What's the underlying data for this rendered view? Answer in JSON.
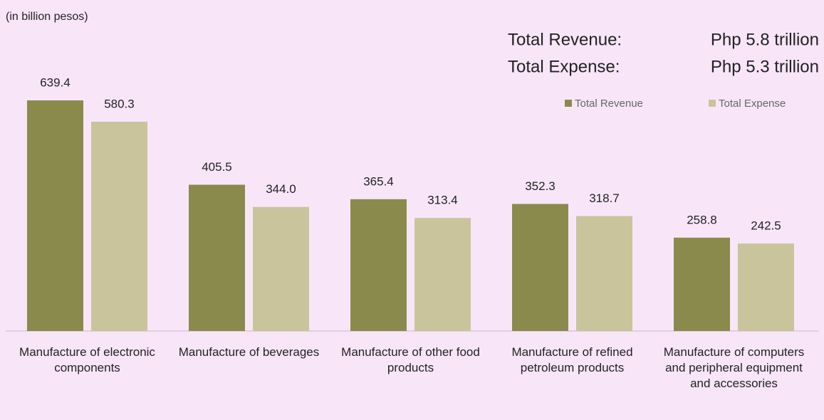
{
  "chart_data": {
    "type": "bar",
    "subtitle": "(in billion pesos)",
    "annotations": [
      {
        "label": "Total Revenue:",
        "text": "Php 5.8 trillion"
      },
      {
        "label": "Total Expense:",
        "text": "Php 5.3 trillion"
      }
    ],
    "categories": [
      "Manufacture of electronic components",
      "Manufacture of beverages",
      "Manufacture of other food products",
      "Manufacture of refined petroleum products",
      "Manufacture of computers and peripheral equipment and accessories"
    ],
    "series": [
      {
        "name": "Total Revenue",
        "color": "#8b8a4d",
        "values": [
          639.4,
          405.5,
          365.4,
          352.3,
          258.8
        ],
        "value_labels": [
          "639.4",
          "405.5",
          "365.4",
          "352.3",
          "258.8"
        ]
      },
      {
        "name": "Total Expense",
        "color": "#cac49c",
        "values": [
          580.3,
          344.0,
          313.4,
          318.7,
          242.5
        ],
        "value_labels": [
          "580.3",
          "344.0",
          "313.4",
          "318.7",
          "242.5"
        ]
      }
    ],
    "legend": "top-right"
  }
}
